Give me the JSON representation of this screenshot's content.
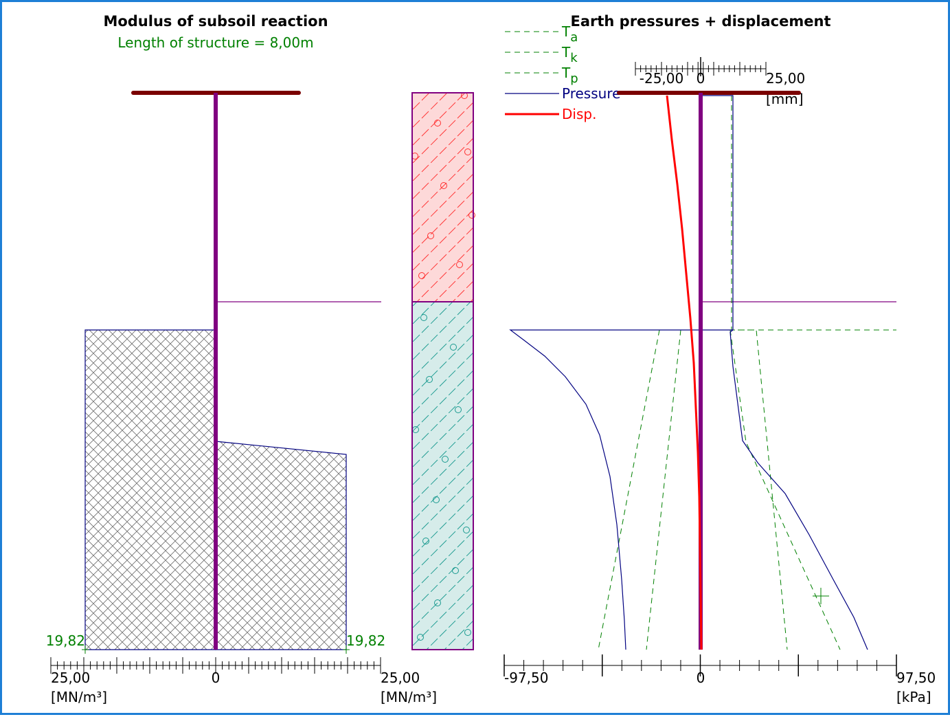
{
  "colors": {
    "frame": "#1e7fd6",
    "green": "#008000",
    "navy": "#000080",
    "red": "#ff0000",
    "purple": "#800080",
    "maroon": "#7a0000",
    "soil1_fill": "#fdd9d9",
    "soil1_hatch": "#ff3030",
    "soil2_fill": "#d6ecea",
    "soil2_hatch": "#1a9a90",
    "modulus_hatch": "#6e6e6e",
    "modulus_outline": "#000080"
  },
  "left": {
    "title": "Modulus of subsoil reaction",
    "subtitle": "Length of structure = 8,00m",
    "label_left_value": "19,82",
    "label_right_value": "19,82",
    "axis": {
      "tick_left": "25,00",
      "tick_center": "0",
      "tick_right": "25,00",
      "unit_left": "[MN/m³]",
      "unit_right": "[MN/m³]"
    }
  },
  "right": {
    "title": "Earth pressures + displacement",
    "legend": {
      "ta": {
        "base": "T",
        "sub": "a"
      },
      "tk": {
        "base": "T",
        "sub": "k"
      },
      "tp": {
        "base": "T",
        "sub": "p"
      },
      "pressure": "Pressure",
      "disp": "Disp."
    },
    "top_axis": {
      "tick_left": "-25,00",
      "tick_center": "0",
      "tick_right": "25,00",
      "unit": "[mm]"
    },
    "bottom_axis": {
      "tick_left": "-97,50",
      "tick_center": "0",
      "tick_right": "97,50",
      "unit": "[kPa]"
    }
  },
  "chart_data": [
    {
      "type": "area",
      "title": "Modulus of subsoil reaction",
      "subtitle": "Length of structure = 8,00m",
      "xlabel": "[MN/m³]",
      "xlim": [
        -25,
        25
      ],
      "ylim": [
        0,
        8
      ],
      "y_axis_reversed": true,
      "series": [
        {
          "name": "",
          "side": "left",
          "points": [
            [
              19.82,
              2.85
            ],
            [
              19.82,
              8.0
            ]
          ]
        },
        {
          "name": "",
          "side": "right",
          "points": [
            [
              0,
              4.2
            ],
            [
              19.82,
              4.4
            ],
            [
              19.82,
              8.0
            ]
          ]
        }
      ],
      "data_labels": [
        "19,82",
        "19,82"
      ]
    },
    {
      "type": "table",
      "layers": [
        {
          "top": 0.0,
          "bottom": 2.5,
          "fill": "#fdd9d9"
        },
        {
          "top": 2.5,
          "bottom": 6.75,
          "fill": "#d6ecea"
        }
      ]
    },
    {
      "type": "line",
      "title": "Earth pressures + displacement",
      "xlim": [
        -97.5,
        97.5
      ],
      "xlabel": "[kPa]",
      "ylim": [
        0,
        6.75
      ],
      "y_axis_reversed": true,
      "secondary_x": {
        "xlim": [
          -25,
          25
        ],
        "label": "[mm]"
      },
      "series": [
        {
          "name": "Pressure",
          "axis": "kPa",
          "points": [
            [
              0,
              0
            ],
            [
              32,
              0
            ],
            [
              32,
              2.85
            ],
            [
              -95,
              2.85
            ],
            [
              -62,
              3.9
            ],
            [
              -20,
              6.75
            ]
          ]
        },
        {
          "name": "Disp.",
          "axis": "mm",
          "points": [
            [
              -8.5,
              0
            ],
            [
              -6.0,
              1.1
            ],
            [
              -4.2,
              2.2
            ],
            [
              -2.6,
              3.4
            ],
            [
              -1.0,
              4.6
            ],
            [
              -0.1,
              5.7
            ],
            [
              0.2,
              6.75
            ]
          ]
        },
        {
          "name": "Ta",
          "axis": "kPa",
          "points": [
            [
              -40,
              2.85
            ],
            [
              -55,
              6.75
            ]
          ]
        },
        {
          "name": "Tk",
          "axis": "kPa",
          "points": [
            [
              -20,
              2.85
            ],
            [
              -50,
              6.75
            ]
          ]
        },
        {
          "name": "Tp",
          "axis": "kPa",
          "points": [
            [
              55,
              2.85
            ],
            [
              90,
              6.75
            ]
          ]
        }
      ]
    }
  ]
}
